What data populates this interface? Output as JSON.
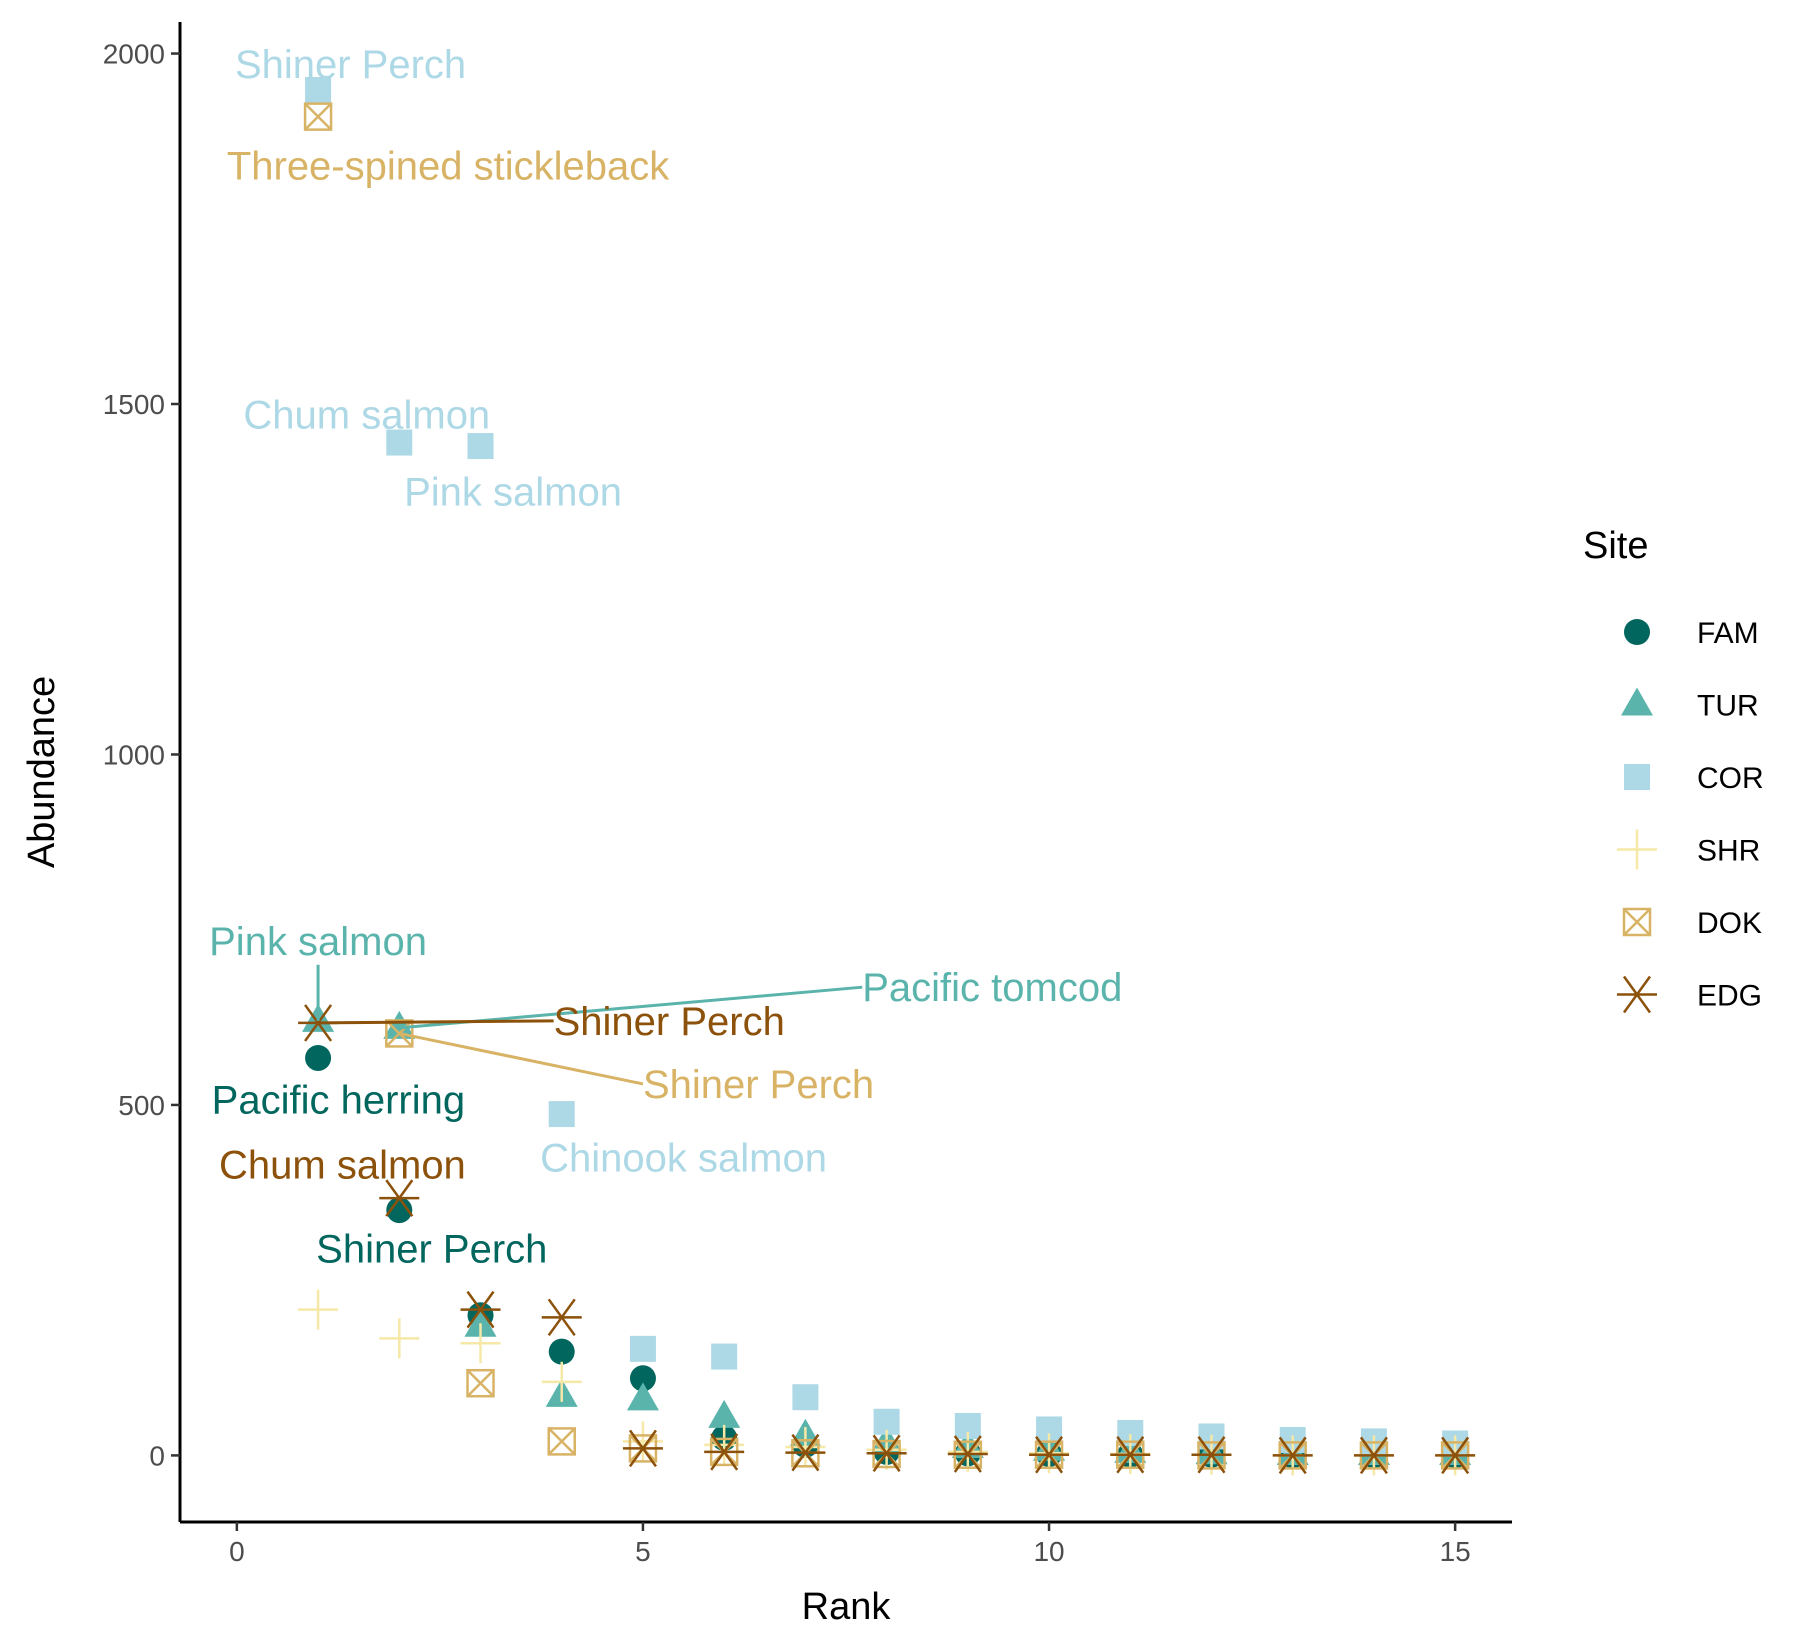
{
  "chart_data": {
    "type": "scatter",
    "xlabel": "Rank",
    "ylabel": "Abundance",
    "xlim": [
      -0.7,
      15.7
    ],
    "ylim": [
      -95,
      2045
    ],
    "xticks": [
      0,
      5,
      10,
      15
    ],
    "yticks": [
      0,
      500,
      1000,
      1500,
      2000
    ],
    "grid": false,
    "legend": {
      "title": "Site",
      "position": "right"
    },
    "series": [
      {
        "name": "FAM",
        "color": "#01665e",
        "shape": "circle",
        "x": [
          1,
          2,
          3,
          4,
          5,
          6,
          7,
          8,
          9,
          10,
          11,
          12,
          13,
          14,
          15
        ],
        "y": [
          567,
          350,
          200,
          148,
          110,
          25,
          15,
          5,
          3,
          2,
          1,
          1,
          0,
          0,
          0
        ]
      },
      {
        "name": "TUR",
        "color": "#5ab4ac",
        "shape": "triangle",
        "x": [
          1,
          2,
          3,
          4,
          5,
          6,
          7,
          8,
          9,
          10,
          11,
          12,
          13,
          14,
          15
        ],
        "y": [
          620,
          610,
          185,
          85,
          80,
          55,
          28,
          18,
          12,
          8,
          5,
          3,
          2,
          2,
          2
        ]
      },
      {
        "name": "COR",
        "color": "#add8e6",
        "shape": "square",
        "x": [
          1,
          2,
          3,
          4,
          5,
          6,
          7,
          8,
          9,
          10,
          11,
          12,
          13,
          14,
          15
        ],
        "y": [
          1948,
          1445,
          1440,
          487,
          152,
          141,
          83,
          48,
          42,
          37,
          32,
          27,
          22,
          20,
          17
        ]
      },
      {
        "name": "SHR",
        "color": "#f6e8a6",
        "shape": "plus",
        "x": [
          1,
          2,
          3,
          4,
          5,
          6,
          7,
          8,
          9,
          10,
          11,
          12,
          13,
          14,
          15
        ],
        "y": [
          208,
          167,
          160,
          105,
          20,
          15,
          12,
          8,
          5,
          3,
          2,
          1,
          0,
          0,
          0
        ]
      },
      {
        "name": "DOK",
        "color": "#d8b365",
        "shape": "square-x",
        "x": [
          1,
          2,
          3,
          4,
          5,
          6,
          7,
          8,
          9,
          10,
          11,
          12,
          13,
          14,
          15
        ],
        "y": [
          1910,
          602,
          103,
          20,
          10,
          5,
          3,
          2,
          1,
          1,
          1,
          0,
          0,
          0,
          0
        ]
      },
      {
        "name": "EDG",
        "color": "#8c510a",
        "shape": "asterisk",
        "x": [
          1,
          2,
          3,
          4,
          5,
          6,
          7,
          8,
          9,
          10,
          11,
          12,
          13,
          14,
          15
        ],
        "y": [
          617,
          367,
          208,
          197,
          10,
          5,
          4,
          3,
          2,
          1,
          1,
          1,
          0,
          0,
          0
        ]
      }
    ],
    "annotations": [
      {
        "text": "Shiner Perch",
        "series": "COR",
        "x": 1,
        "y": 1948,
        "lx": 1.4,
        "ly": 1985,
        "leader": false
      },
      {
        "text": "Three-spined stickleback",
        "series": "DOK",
        "x": 1,
        "y": 1910,
        "lx": 2.6,
        "ly": 1840,
        "leader": false
      },
      {
        "text": "Chum salmon",
        "series": "COR",
        "x": 2,
        "y": 1445,
        "lx": 1.6,
        "ly": 1485,
        "leader": false
      },
      {
        "text": "Pink salmon",
        "series": "COR",
        "x": 3,
        "y": 1440,
        "lx": 3.4,
        "ly": 1375,
        "leader": false
      },
      {
        "text": "Pink salmon",
        "series": "TUR",
        "x": 1,
        "y": 620,
        "lx": 1.0,
        "ly": 700,
        "leader": true
      },
      {
        "text": "Pacific tomcod",
        "series": "TUR",
        "x": 2,
        "y": 610,
        "lx": 7.7,
        "ly": 668,
        "leader": true
      },
      {
        "text": "Shiner Perch",
        "series": "EDG",
        "x": 1,
        "y": 617,
        "lx": 3.9,
        "ly": 620,
        "leader": true
      },
      {
        "text": "Shiner Perch",
        "series": "DOK",
        "x": 2,
        "y": 602,
        "lx": 5.0,
        "ly": 530,
        "leader": true
      },
      {
        "text": "Pacific herring",
        "series": "FAM",
        "x": 1,
        "y": 567,
        "lx": 1.25,
        "ly": 508,
        "leader": false
      },
      {
        "text": "Chinook salmon",
        "series": "COR",
        "x": 4,
        "y": 487,
        "lx": 5.5,
        "ly": 425,
        "leader": false
      },
      {
        "text": "Chum salmon",
        "series": "EDG",
        "x": 2,
        "y": 367,
        "lx": 1.3,
        "ly": 415,
        "leader": false
      },
      {
        "text": "Shiner Perch",
        "series": "FAM",
        "x": 2,
        "y": 350,
        "lx": 2.4,
        "ly": 295,
        "leader": false
      }
    ]
  }
}
